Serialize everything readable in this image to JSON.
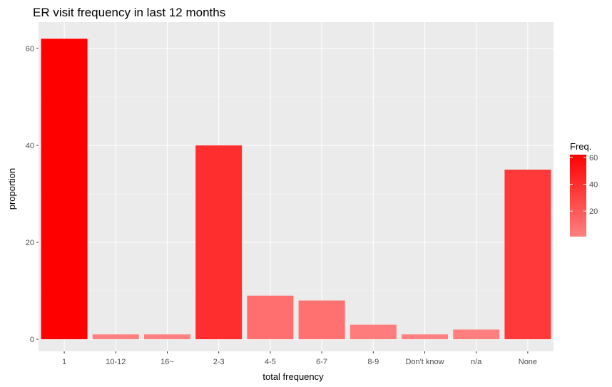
{
  "chart_data": {
    "type": "bar",
    "title": "ER visit frequency in last 12 months",
    "xlabel": "total frequency",
    "ylabel": "proportion",
    "categories": [
      "1",
      "10-12",
      "16~",
      "2-3",
      "4-5",
      "6-7",
      "8-9",
      "Don't know",
      "n/a",
      "None"
    ],
    "values": [
      62,
      1,
      1,
      40,
      9,
      8,
      3,
      1,
      2,
      35
    ],
    "ylim": [
      0,
      65
    ],
    "yticks": [
      0,
      20,
      40,
      60
    ],
    "grid": true,
    "legend": {
      "title": "Freq.",
      "placement": "right",
      "ticks": [
        20,
        40,
        60
      ],
      "low_color": "#ff8080",
      "high_color": "#ff0000",
      "range": [
        1,
        62
      ]
    },
    "colors": {
      "panel_background": "#ebebeb",
      "grid_major": "#ffffff",
      "grid_minor": "#f5f5f5"
    }
  }
}
